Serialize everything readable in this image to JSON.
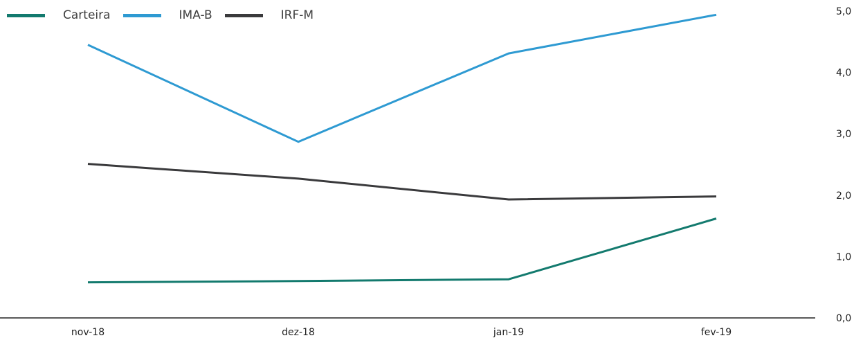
{
  "chart_data": {
    "type": "line",
    "categories": [
      "nov-18",
      "dez-18",
      "jan-19",
      "fev-19"
    ],
    "series": [
      {
        "name": "Carteira",
        "color": "#137a6e",
        "values": [
          0.58,
          0.6,
          0.63,
          1.62
        ]
      },
      {
        "name": "IMA-B",
        "color": "#2e9ad2",
        "values": [
          4.45,
          2.87,
          4.31,
          4.94
        ]
      },
      {
        "name": "IRF-M",
        "color": "#3a3a3c",
        "values": [
          2.51,
          2.27,
          1.93,
          1.98
        ]
      }
    ],
    "y_ticks": [
      "0,0",
      "1,0",
      "2,0",
      "3,0",
      "4,0",
      "5,0"
    ],
    "ylim": [
      0,
      5
    ],
    "y_axis_side": "right",
    "legend_position": "top-left",
    "grid": false
  }
}
